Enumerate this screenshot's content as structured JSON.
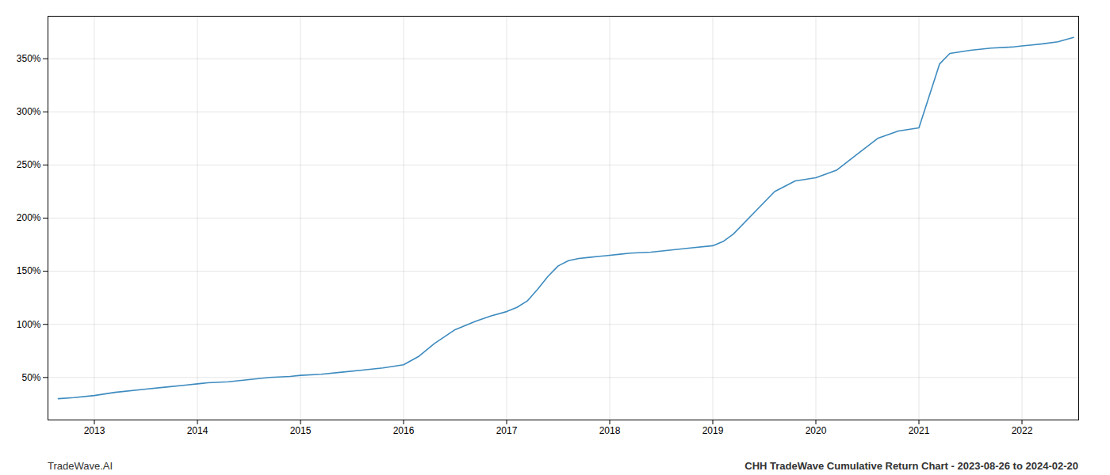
{
  "chart_data": {
    "type": "line",
    "title": "CHH TradeWave Cumulative Return Chart - 2023-08-26 to 2024-02-20",
    "annotations": [
      "TradeWave.AI"
    ],
    "x": [
      2012.65,
      2012.8,
      2013.0,
      2013.2,
      2013.5,
      2013.7,
      2013.9,
      2014.0,
      2014.1,
      2014.3,
      2014.5,
      2014.7,
      2014.9,
      2015.0,
      2015.2,
      2015.4,
      2015.6,
      2015.8,
      2016.0,
      2016.15,
      2016.3,
      2016.5,
      2016.7,
      2016.85,
      2017.0,
      2017.1,
      2017.2,
      2017.3,
      2017.4,
      2017.5,
      2017.6,
      2017.7,
      2017.8,
      2017.9,
      2018.0,
      2018.1,
      2018.2,
      2018.4,
      2018.6,
      2018.8,
      2019.0,
      2019.1,
      2019.2,
      2019.4,
      2019.6,
      2019.8,
      2020.0,
      2020.2,
      2020.4,
      2020.6,
      2020.8,
      2021.0,
      2021.1,
      2021.2,
      2021.3,
      2021.5,
      2021.7,
      2021.9,
      2022.0,
      2022.1,
      2022.2,
      2022.35,
      2022.5
    ],
    "values": [
      30,
      31,
      33,
      36,
      39,
      41,
      43,
      44,
      45,
      46,
      48,
      50,
      51,
      52,
      53,
      55,
      57,
      59,
      62,
      70,
      82,
      95,
      103,
      108,
      112,
      116,
      122,
      133,
      145,
      155,
      160,
      162,
      163,
      164,
      165,
      166,
      167,
      168,
      170,
      172,
      174,
      178,
      185,
      205,
      225,
      235,
      238,
      245,
      260,
      275,
      282,
      285,
      315,
      345,
      355,
      358,
      360,
      361,
      362,
      363,
      364,
      366,
      370
    ],
    "color": "#3d8bbf",
    "xlim": [
      2012.55,
      2022.55
    ],
    "xticks": [
      2013,
      2014,
      2015,
      2016,
      2017,
      2018,
      2019,
      2020,
      2021,
      2022
    ],
    "ylim": [
      10,
      390
    ],
    "yticks": [
      {
        "value": 50,
        "label": "50%"
      },
      {
        "value": 100,
        "label": "100%"
      },
      {
        "value": 150,
        "label": "150%"
      },
      {
        "value": 200,
        "label": "200%"
      },
      {
        "value": 250,
        "label": "250%"
      },
      {
        "value": 300,
        "label": "300%"
      },
      {
        "value": 350,
        "label": "350%"
      }
    ],
    "grid": true
  }
}
